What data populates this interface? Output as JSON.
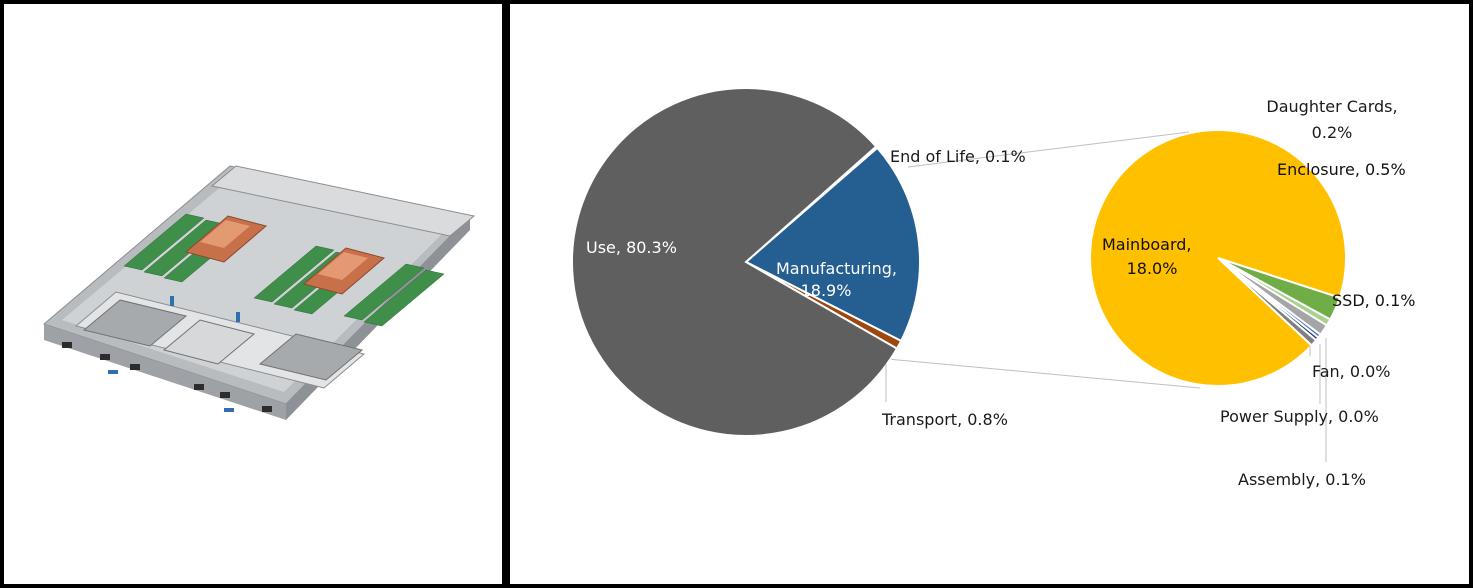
{
  "left_panel": {
    "image_icon": "server-blade-product-photo"
  },
  "colors": {
    "use": "#5f5f5f",
    "manufacturing": "#255e91",
    "transport": "#9e480e",
    "end_of_life": "#cfcfcf",
    "mainboard": "#ffc000",
    "daughter_cards": "#a5a5a5",
    "enclosure": "#70ad47",
    "ssd": "#a9d18e",
    "fan": "#4472c4",
    "power_supply": "#264478",
    "assembly": "#7f7f7f",
    "connector": "#bfbfbf"
  },
  "chart_data": {
    "type": "pie",
    "subtype": "pie-of-pie",
    "title": "",
    "series": [
      {
        "name": "",
        "slices": [
          {
            "label": "Use",
            "value": 80.3,
            "text": "Use, 80.3%"
          },
          {
            "label": "Manufacturing",
            "value": 18.9,
            "text_line1": "Manufacturing,",
            "text_line2": "18.9%"
          },
          {
            "label": "Transport",
            "value": 0.8,
            "text": "Transport, 0.8%"
          },
          {
            "label": "End of Life",
            "value": 0.1,
            "text": "End of Life, 0.1%"
          }
        ]
      },
      {
        "name": "",
        "breakdown_of": "Manufacturing",
        "slices": [
          {
            "label": "Mainboard",
            "value": 18.0,
            "text_line1": "Mainboard,",
            "text_line2": "18.0%"
          },
          {
            "label": "Daughter Cards",
            "value": 0.2,
            "text_line1": "Daughter Cards,",
            "text_line2": "0.2%"
          },
          {
            "label": "Enclosure",
            "value": 0.5,
            "text": "Enclosure, 0.5%"
          },
          {
            "label": "SSD",
            "value": 0.1,
            "text": "SSD, 0.1%"
          },
          {
            "label": "Fan",
            "value": 0.0,
            "text": "Fan, 0.0%"
          },
          {
            "label": "Power Supply",
            "value": 0.0,
            "text": "Power Supply, 0.0%"
          },
          {
            "label": "Assembly",
            "value": 0.1,
            "text": "Assembly, 0.1%"
          }
        ]
      }
    ],
    "legend": "none"
  }
}
